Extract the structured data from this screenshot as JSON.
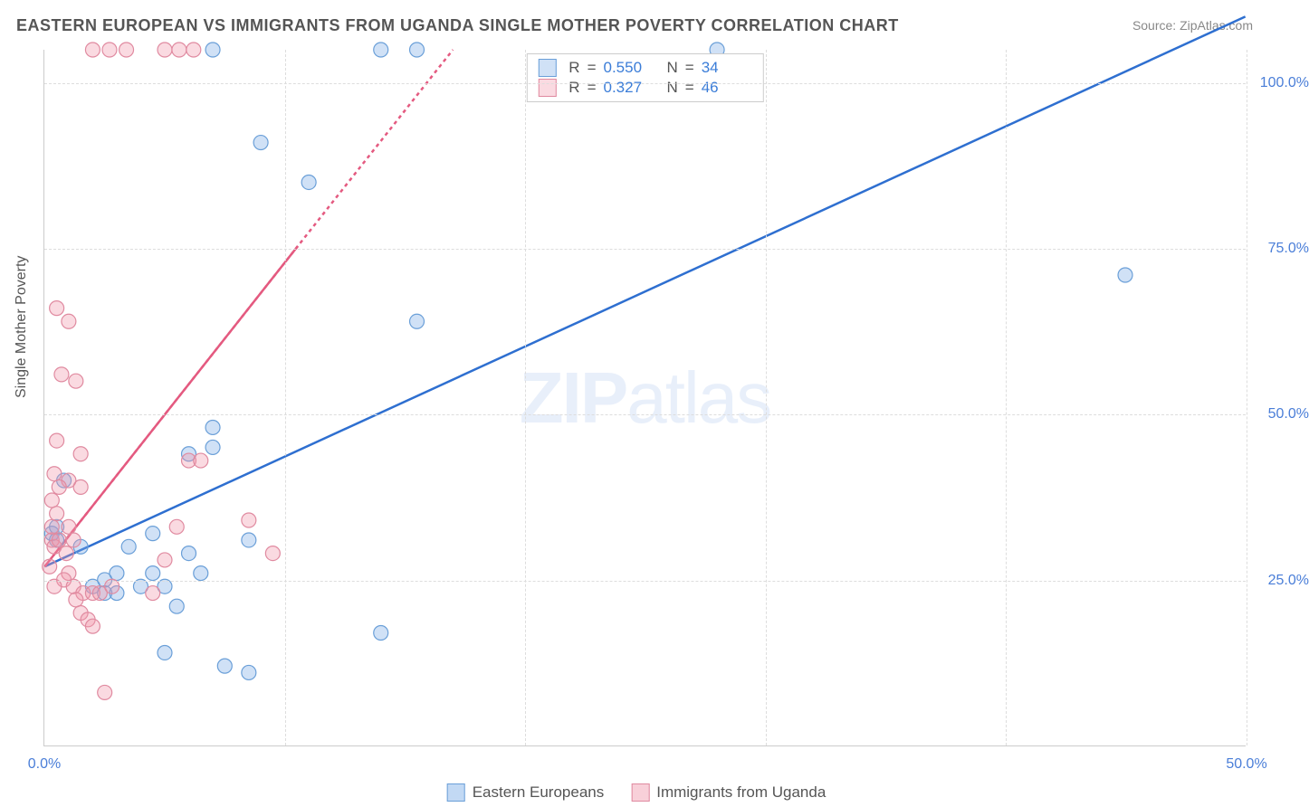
{
  "title": "EASTERN EUROPEAN VS IMMIGRANTS FROM UGANDA SINGLE MOTHER POVERTY CORRELATION CHART",
  "source": "Source: ZipAtlas.com",
  "y_axis_label": "Single Mother Poverty",
  "watermark_bold": "ZIP",
  "watermark_rest": "atlas",
  "chart": {
    "type": "scatter",
    "xlim": [
      0,
      50
    ],
    "ylim": [
      0,
      105
    ],
    "x_ticks": [
      0,
      50
    ],
    "x_tick_labels": [
      "0.0%",
      "50.0%"
    ],
    "y_ticks": [
      25,
      50,
      75,
      100
    ],
    "y_tick_labels": [
      "25.0%",
      "50.0%",
      "75.0%",
      "100.0%"
    ],
    "x_gridlines": [
      10,
      20,
      30,
      40,
      50
    ],
    "background_color": "#ffffff",
    "grid_color": "#dddddd",
    "axis_color": "#cccccc",
    "tick_label_color": "#4a7ed8",
    "marker_radius": 8,
    "marker_stroke_width": 1.2,
    "line_width": 2.5,
    "series": [
      {
        "name": "Eastern Europeans",
        "fill_color": "rgba(120,170,230,0.35)",
        "stroke_color": "#6a9fd8",
        "line_color": "#2e6fd0",
        "line_dash": "none",
        "trend_from": [
          0,
          27
        ],
        "trend_to": [
          50,
          110
        ],
        "r_value": "0.550",
        "n_value": "34",
        "points": [
          [
            0.3,
            32
          ],
          [
            0.5,
            31
          ],
          [
            0.5,
            33
          ],
          [
            1.5,
            30
          ],
          [
            3.5,
            30
          ],
          [
            2.0,
            24
          ],
          [
            2.5,
            25
          ],
          [
            3.0,
            26
          ],
          [
            2.5,
            23
          ],
          [
            3.0,
            23
          ],
          [
            4.0,
            24
          ],
          [
            4.5,
            26
          ],
          [
            5.0,
            24
          ],
          [
            5.5,
            21
          ],
          [
            6.5,
            26
          ],
          [
            5.0,
            14
          ],
          [
            7.5,
            12
          ],
          [
            8.5,
            11
          ],
          [
            4.5,
            32
          ],
          [
            6.0,
            44
          ],
          [
            7.0,
            45
          ],
          [
            7.0,
            48
          ],
          [
            8.5,
            31
          ],
          [
            14.0,
            105
          ],
          [
            15.5,
            105
          ],
          [
            7.0,
            105
          ],
          [
            28,
            105
          ],
          [
            9.0,
            91
          ],
          [
            11.0,
            85
          ],
          [
            15.5,
            64
          ],
          [
            14.0,
            17
          ],
          [
            45,
            71
          ],
          [
            0.8,
            40
          ],
          [
            6.0,
            29
          ]
        ]
      },
      {
        "name": "Immigrants from Uganda",
        "fill_color": "rgba(240,150,170,0.35)",
        "stroke_color": "#e08aa0",
        "line_color": "#e45a80",
        "line_dash": "4,4",
        "trend_from": [
          0,
          27
        ],
        "trend_to": [
          17,
          105
        ],
        "r_value": "0.327",
        "n_value": "46",
        "points": [
          [
            0.3,
            31
          ],
          [
            0.5,
            66
          ],
          [
            1.0,
            64
          ],
          [
            0.7,
            56
          ],
          [
            1.3,
            55
          ],
          [
            0.5,
            46
          ],
          [
            1.5,
            44
          ],
          [
            0.4,
            41
          ],
          [
            1.0,
            40
          ],
          [
            0.6,
            39
          ],
          [
            1.5,
            39
          ],
          [
            0.3,
            37
          ],
          [
            0.5,
            35
          ],
          [
            1.0,
            33
          ],
          [
            0.4,
            30
          ],
          [
            0.2,
            27
          ],
          [
            1.0,
            26
          ],
          [
            0.8,
            25
          ],
          [
            1.2,
            24
          ],
          [
            1.6,
            23
          ],
          [
            2.0,
            23
          ],
          [
            1.3,
            22
          ],
          [
            2.3,
            23
          ],
          [
            2.8,
            24
          ],
          [
            1.5,
            20
          ],
          [
            1.8,
            19
          ],
          [
            2.0,
            18
          ],
          [
            2.5,
            8
          ],
          [
            4.5,
            23
          ],
          [
            5.0,
            28
          ],
          [
            5.5,
            33
          ],
          [
            6.0,
            43
          ],
          [
            6.5,
            43
          ],
          [
            8.5,
            34
          ],
          [
            9.5,
            29
          ],
          [
            2.0,
            105
          ],
          [
            2.7,
            105
          ],
          [
            3.4,
            105
          ],
          [
            5.0,
            105
          ],
          [
            5.6,
            105
          ],
          [
            6.2,
            105
          ],
          [
            0.3,
            33
          ],
          [
            0.6,
            31
          ],
          [
            0.9,
            29
          ],
          [
            1.2,
            31
          ],
          [
            0.4,
            24
          ]
        ]
      }
    ]
  },
  "legend_top": {
    "r_label": "R",
    "n_label": "N",
    "eq": "="
  },
  "legend_bottom": [
    {
      "label": "Eastern Europeans",
      "fill": "rgba(120,170,230,0.45)",
      "stroke": "#6a9fd8"
    },
    {
      "label": "Immigrants from Uganda",
      "fill": "rgba(240,150,170,0.45)",
      "stroke": "#e08aa0"
    }
  ]
}
